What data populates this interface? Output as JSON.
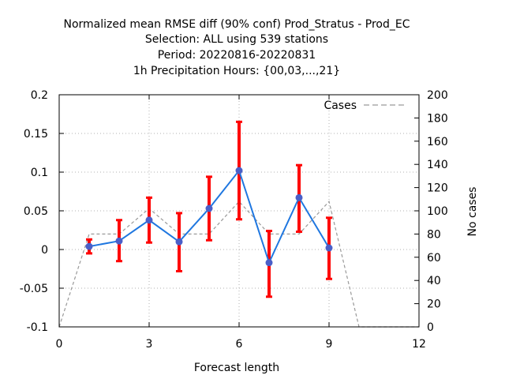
{
  "chart_data": {
    "type": "line",
    "title_lines": [
      "Normalized mean RMSE diff (90% conf) Prod_Stratus - Prod_EC",
      "Selection: ALL using   539 stations",
      "Period: 20220816-20220831",
      "1h Precipitation    Hours: {00,03,...,21}"
    ],
    "xlabel": "Forecast length",
    "ylabel": "",
    "y2label": "No cases",
    "xlim": [
      0,
      12
    ],
    "ylim": [
      -0.1,
      0.2
    ],
    "y2lim": [
      0,
      200
    ],
    "xticks": [
      "0",
      "3",
      "6",
      "9",
      "12"
    ],
    "yticks": [
      "-0.1",
      "-0.05",
      "0",
      "0.05",
      "0.1",
      "0.15",
      "0.2"
    ],
    "y2ticks": [
      "0",
      "20",
      "40",
      "60",
      "80",
      "100",
      "120",
      "140",
      "160",
      "180",
      "200"
    ],
    "grid": true,
    "legend_position": "top-right",
    "series": [
      {
        "kind": "line-points",
        "color": "#1f77e0",
        "marker_color": "#4a5fc8",
        "x": [
          1,
          2,
          3,
          4,
          5,
          6,
          7,
          8,
          9
        ],
        "y": [
          0.004,
          0.011,
          0.038,
          0.01,
          0.053,
          0.102,
          -0.017,
          0.067,
          0.002
        ]
      },
      {
        "kind": "errorbars",
        "color": "#ff0000",
        "x": [
          1,
          2,
          3,
          4,
          5,
          6,
          7,
          8,
          9
        ],
        "low": [
          -0.005,
          -0.015,
          0.009,
          -0.028,
          0.012,
          0.039,
          -0.061,
          0.023,
          -0.038
        ],
        "high": [
          0.013,
          0.038,
          0.067,
          0.047,
          0.094,
          0.165,
          0.024,
          0.109,
          0.041
        ]
      },
      {
        "name": "Cases",
        "kind": "dashed-line",
        "axis": "y2",
        "color": "#999999",
        "x": [
          0,
          1,
          2,
          3,
          4,
          5,
          6,
          7,
          8,
          9,
          10,
          11,
          12
        ],
        "y": [
          0,
          80,
          80,
          102,
          80,
          80,
          108,
          80,
          80,
          108,
          0,
          0,
          0
        ]
      }
    ]
  }
}
